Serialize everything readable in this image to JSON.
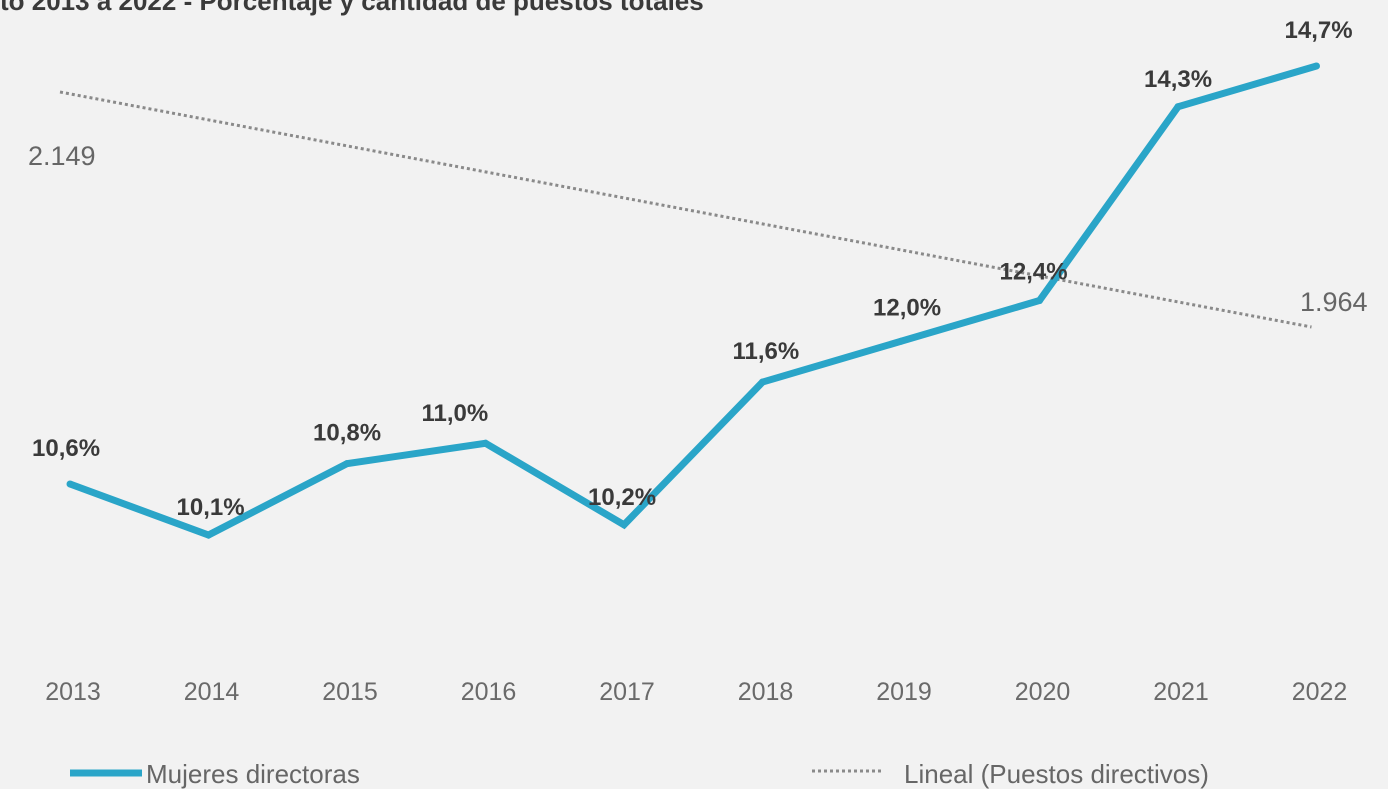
{
  "chart_data": {
    "type": "line",
    "title": "to 2013 a 2022 - Porcentaje y cantidad de puestos totales",
    "categories": [
      "2013",
      "2014",
      "2015",
      "2016",
      "2017",
      "2018",
      "2019",
      "2020",
      "2021",
      "2022"
    ],
    "series": [
      {
        "name": "Mujeres directoras",
        "style": "solid",
        "color": "#2aa5c8",
        "values": [
          10.6,
          10.1,
          10.8,
          11.0,
          10.2,
          11.6,
          12.0,
          12.4,
          14.3,
          14.7
        ],
        "labels": [
          "10,6%",
          "10,1%",
          "10,8%",
          "11,0%",
          "10,2%",
          "11,6%",
          "12,0%",
          "12,4%",
          "14,3%",
          "14,7%"
        ]
      },
      {
        "name": "Lineal (Puestos directivos)",
        "style": "dotted",
        "color": "#8a8a8a",
        "values": [
          2149,
          1964
        ],
        "x": [
          "2013",
          "2022"
        ],
        "labels": [
          "2.149",
          "1.964"
        ]
      }
    ],
    "legend": {
      "position": "bottom",
      "items": [
        "Mujeres directoras",
        "Lineal (Puestos directivos)"
      ]
    },
    "grid": false
  }
}
